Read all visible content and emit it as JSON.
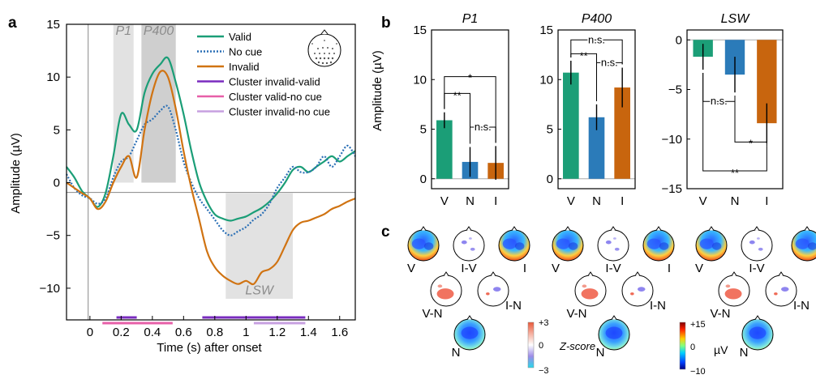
{
  "chart_data": [
    {
      "panel": "a",
      "type": "line",
      "xlabel": "Time (s) after onset",
      "ylabel": "Amplitude (µV)",
      "xlim": [
        -0.15,
        1.7
      ],
      "ylim": [
        -13,
        15
      ],
      "xticks": [
        0,
        0.2,
        0.4,
        0.6,
        0.8,
        1.0,
        1.2,
        1.4,
        1.6
      ],
      "xtick_labels": [
        "0",
        "0.2",
        "0.4",
        "0.6",
        "0.8",
        "1",
        "1.2",
        "1.4",
        "1.6"
      ],
      "yticks": [
        -10,
        -5,
        0,
        5,
        10,
        15
      ],
      "ytick_labels": [
        "−10",
        "−5",
        "0",
        "5",
        "10",
        "15"
      ],
      "windows": [
        {
          "label": "P1",
          "start": 0.15,
          "end": 0.28
        },
        {
          "label": "P400",
          "start": 0.33,
          "end": 0.55
        },
        {
          "label": "LSW",
          "start": 0.87,
          "end": 1.3
        }
      ],
      "series": [
        {
          "name": "Valid",
          "color": "#1b9e77",
          "style": "solid",
          "x": [
            -0.15,
            -0.1,
            -0.05,
            0,
            0.05,
            0.1,
            0.15,
            0.2,
            0.25,
            0.3,
            0.35,
            0.4,
            0.45,
            0.5,
            0.55,
            0.6,
            0.65,
            0.7,
            0.75,
            0.8,
            0.85,
            0.9,
            0.95,
            1.0,
            1.05,
            1.1,
            1.15,
            1.2,
            1.25,
            1.3,
            1.35,
            1.4,
            1.45,
            1.5,
            1.55,
            1.6,
            1.65,
            1.7
          ],
          "y": [
            1.5,
            0.5,
            -0.8,
            -1.5,
            -2.3,
            -1.0,
            2.5,
            6.5,
            5.5,
            5.0,
            8.5,
            10.3,
            11.2,
            11.8,
            9.5,
            6.5,
            3.0,
            0.0,
            -1.8,
            -3.0,
            -3.4,
            -3.6,
            -3.4,
            -3.2,
            -2.8,
            -2.4,
            -1.8,
            -1.0,
            0.0,
            1.2,
            1.5,
            1.0,
            1.5,
            2.0,
            2.5,
            2.0,
            2.5,
            3.0
          ]
        },
        {
          "name": "No cue",
          "color": "#2a6fb5",
          "style": "dotted",
          "x": [
            -0.15,
            -0.1,
            -0.05,
            0,
            0.05,
            0.1,
            0.15,
            0.2,
            0.25,
            0.3,
            0.35,
            0.4,
            0.45,
            0.5,
            0.55,
            0.6,
            0.65,
            0.7,
            0.75,
            0.8,
            0.85,
            0.9,
            0.95,
            1.0,
            1.05,
            1.1,
            1.15,
            1.2,
            1.25,
            1.3,
            1.35,
            1.4,
            1.45,
            1.5,
            1.55,
            1.6,
            1.65,
            1.7
          ],
          "y": [
            0.8,
            -0.5,
            -1.2,
            -1.5,
            -2.0,
            -1.5,
            0.5,
            2.0,
            2.5,
            4.0,
            5.5,
            6.0,
            6.8,
            7.2,
            5.0,
            2.0,
            0.0,
            -1.5,
            -2.5,
            -3.5,
            -4.5,
            -5.0,
            -4.6,
            -4.2,
            -3.5,
            -3.0,
            -2.0,
            -0.5,
            0.5,
            1.5,
            1.0,
            1.0,
            1.5,
            2.5,
            1.5,
            2.5,
            3.5,
            2.5
          ]
        },
        {
          "name": "Invalid",
          "color": "#d07312",
          "style": "solid",
          "x": [
            -0.15,
            -0.1,
            -0.05,
            0,
            0.05,
            0.1,
            0.15,
            0.2,
            0.25,
            0.3,
            0.35,
            0.4,
            0.45,
            0.5,
            0.55,
            0.6,
            0.65,
            0.7,
            0.75,
            0.8,
            0.85,
            0.9,
            0.95,
            1.0,
            1.05,
            1.1,
            1.15,
            1.2,
            1.25,
            1.3,
            1.35,
            1.4,
            1.45,
            1.5,
            1.55,
            1.6,
            1.65,
            1.7
          ],
          "y": [
            0.0,
            -0.5,
            -1.0,
            -1.5,
            -2.5,
            -1.8,
            0.0,
            1.5,
            2.5,
            0.5,
            5.0,
            8.5,
            10.5,
            10.0,
            7.0,
            3.0,
            -0.5,
            -3.5,
            -6.5,
            -8.0,
            -8.8,
            -9.3,
            -9.6,
            -9.3,
            -9.6,
            -8.5,
            -8.2,
            -7.5,
            -6.0,
            -4.5,
            -3.8,
            -3.6,
            -3.3,
            -3.0,
            -2.5,
            -2.2,
            -1.8,
            -1.5
          ]
        }
      ],
      "clusters": [
        {
          "name": "Cluster invalid-valid",
          "color": "#7a2cbf",
          "segments": [
            [
              0.17,
              0.3
            ],
            [
              0.72,
              1.38
            ]
          ]
        },
        {
          "name": "Cluster valid-no cue",
          "color": "#e75fa8",
          "segments": [
            [
              0.08,
              0.53
            ]
          ]
        },
        {
          "name": "Cluster invalid-no cue",
          "color": "#c7a0e0",
          "segments": [
            [
              1.05,
              1.38
            ]
          ]
        }
      ]
    },
    {
      "panel": "b",
      "type": "bar",
      "title": "P1",
      "ylabel": "Amplitude (µV)",
      "categories": [
        "V",
        "N",
        "I"
      ],
      "values": [
        5.9,
        1.7,
        1.6
      ],
      "errors": [
        0.8,
        1.5,
        1.7
      ],
      "colors": [
        "#1b9e77",
        "#2b7bb9",
        "#c8650e"
      ],
      "ylim": [
        -1,
        15
      ],
      "yticks": [
        0,
        5,
        10,
        15
      ],
      "ytick_labels": [
        "0",
        "5",
        "10",
        "15"
      ],
      "comparisons": [
        {
          "pair": [
            "V",
            "I"
          ],
          "label": "*",
          "level": 10.3
        },
        {
          "pair": [
            "V",
            "N"
          ],
          "label": "**",
          "level": 8.6
        },
        {
          "pair": [
            "N",
            "I"
          ],
          "label": "n.s.",
          "level": 5.2
        }
      ]
    },
    {
      "panel": "b",
      "type": "bar",
      "title": "P400",
      "categories": [
        "V",
        "N",
        "I"
      ],
      "values": [
        10.7,
        6.2,
        9.2
      ],
      "errors": [
        1.2,
        1.3,
        2.0
      ],
      "colors": [
        "#1b9e77",
        "#2b7bb9",
        "#c8650e"
      ],
      "ylim": [
        -1,
        15
      ],
      "yticks": [
        0,
        5,
        10,
        15
      ],
      "ytick_labels": [
        "0",
        "5",
        "10",
        "15"
      ],
      "comparisons": [
        {
          "pair": [
            "V",
            "I"
          ],
          "label": "n.s.",
          "level": 14.0
        },
        {
          "pair": [
            "V",
            "N"
          ],
          "label": "**",
          "level": 12.6
        },
        {
          "pair": [
            "N",
            "I"
          ],
          "label": "n.s.",
          "level": 11.7
        }
      ]
    },
    {
      "panel": "b",
      "type": "bar",
      "title": "LSW",
      "categories": [
        "V",
        "N",
        "I"
      ],
      "values": [
        -1.7,
        -3.5,
        -8.4
      ],
      "errors": [
        1.3,
        1.8,
        2.0
      ],
      "colors": [
        "#1b9e77",
        "#2b7bb9",
        "#c8650e"
      ],
      "ylim": [
        -15,
        1
      ],
      "yticks": [
        0,
        -5,
        -10,
        -15
      ],
      "ytick_labels": [
        "0",
        "−5",
        "−10",
        "−15"
      ],
      "comparisons": [
        {
          "pair": [
            "V",
            "N"
          ],
          "label": "n.s.",
          "level": -6.2
        },
        {
          "pair": [
            "N",
            "I"
          ],
          "label": "*",
          "level": -10.3
        },
        {
          "pair": [
            "V",
            "I"
          ],
          "label": "**",
          "level": -13.2
        }
      ]
    }
  ],
  "panel_letters": {
    "a": "a",
    "b": "b",
    "c": "c"
  },
  "legend_items": [
    "Valid",
    "No cue",
    "Invalid",
    "Cluster invalid-valid",
    "Cluster valid-no cue",
    "Cluster invalid-no cue"
  ],
  "topomaps": {
    "groups": [
      {
        "labels": {
          "V": "V",
          "IV": "I-V",
          "I": "I",
          "VN": "V-N",
          "IN": "I-N",
          "N": "N"
        }
      },
      {
        "labels": {
          "V": "V",
          "IV": "I-V",
          "I": "I",
          "VN": "V-N",
          "IN": "I-N",
          "N": "N"
        }
      },
      {
        "labels": {
          "V": "V",
          "IV": "I-V",
          "I": "I",
          "VN": "V-N",
          "IN": "I-N",
          "N": "N"
        }
      }
    ],
    "zscore_colorbar": {
      "label": "Z-score",
      "ticks": [
        "+3",
        "0",
        "−3"
      ]
    },
    "uv_colorbar": {
      "label": "µV",
      "ticks": [
        "+15",
        "0",
        "−10"
      ]
    }
  }
}
